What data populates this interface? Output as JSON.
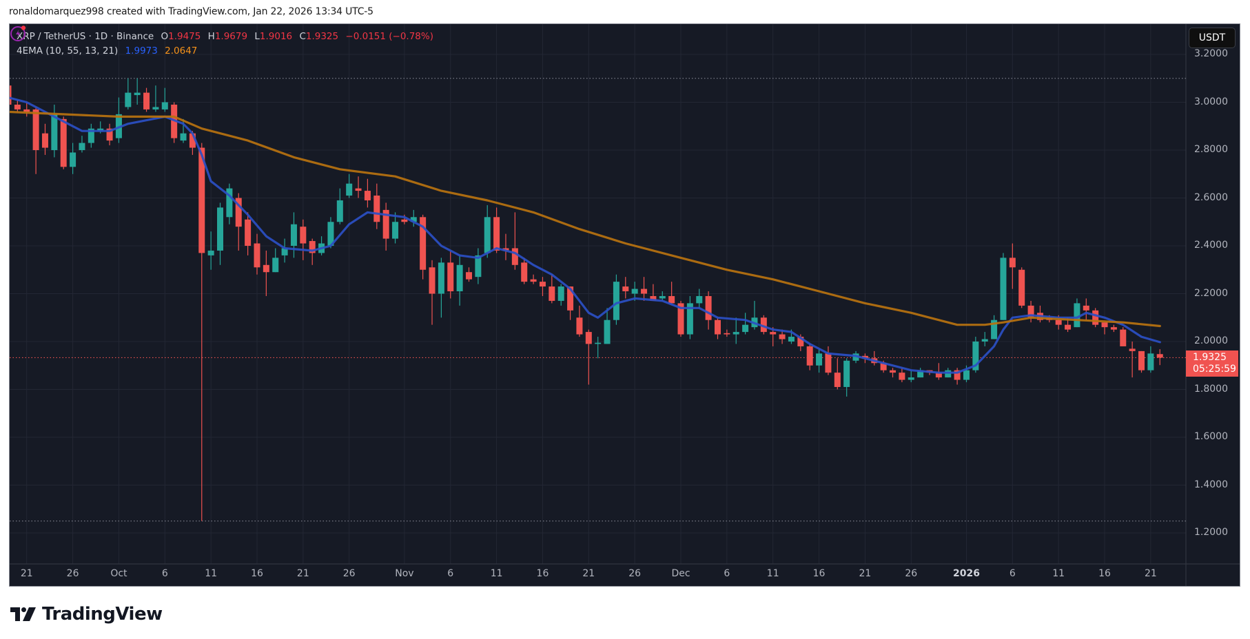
{
  "credit": "ronaldomarquez998 created with TradingView.com, Jan 22, 2026 13:34 UTC-5",
  "legend": {
    "symbol": "XRP / TetherUS · 1D · Binance",
    "o_label": "O",
    "o": "1.9475",
    "h_label": "H",
    "h": "1.9679",
    "l_label": "L",
    "l": "1.9016",
    "c_label": "C",
    "c": "1.9325",
    "change": "−0.0151 (−0.78%)",
    "indicator": "4EMA (10, 55, 13, 21)",
    "ema_fast": "1.9973",
    "ema_slow": "2.0647"
  },
  "currency_button": "USDT",
  "last_price": {
    "price": "1.9325",
    "countdown": "05:25:59"
  },
  "logo_text": "TradingView",
  "icons": {
    "alert": "lightning-alert-icon",
    "logo": "tradingview-logo-icon"
  },
  "colors": {
    "up": "#26a69a",
    "down": "#ef5350",
    "ema_fast": "#2b4fc4",
    "ema_slow": "#b8720f",
    "background": "#161a25",
    "grid": "#232734",
    "text": "#b2b5be"
  },
  "chart_data": {
    "type": "candlestick",
    "title": "XRP / TetherUS · 1D · Binance",
    "xlabel": "",
    "ylabel": "USDT",
    "ylim": [
      1.08,
      3.25
    ],
    "grid": true,
    "y_ticks": [
      "3.2000",
      "3.0000",
      "2.8000",
      "2.6000",
      "2.4000",
      "2.2000",
      "2.0000",
      "1.8000",
      "1.6000",
      "1.4000",
      "1.2000"
    ],
    "x_ticks": [
      {
        "label": "21",
        "day": 2
      },
      {
        "label": "26",
        "day": 7
      },
      {
        "label": "Oct",
        "day": 12
      },
      {
        "label": "6",
        "day": 17
      },
      {
        "label": "11",
        "day": 22
      },
      {
        "label": "16",
        "day": 27
      },
      {
        "label": "21",
        "day": 32
      },
      {
        "label": "26",
        "day": 37
      },
      {
        "label": "Nov",
        "day": 43
      },
      {
        "label": "6",
        "day": 48
      },
      {
        "label": "11",
        "day": 53
      },
      {
        "label": "16",
        "day": 58
      },
      {
        "label": "21",
        "day": 63
      },
      {
        "label": "26",
        "day": 68
      },
      {
        "label": "Dec",
        "day": 73
      },
      {
        "label": "6",
        "day": 78
      },
      {
        "label": "11",
        "day": 83
      },
      {
        "label": "16",
        "day": 88
      },
      {
        "label": "21",
        "day": 93
      },
      {
        "label": "26",
        "day": 98
      },
      {
        "label": "2026",
        "day": 104,
        "bold": true
      },
      {
        "label": "6",
        "day": 109
      },
      {
        "label": "11",
        "day": 114
      },
      {
        "label": "16",
        "day": 119
      },
      {
        "label": "21",
        "day": 124
      }
    ],
    "start_date": "Sep 19",
    "candles": [
      [
        3.07,
        3.08,
        2.95,
        2.99
      ],
      [
        2.99,
        3.01,
        2.96,
        2.97
      ],
      [
        2.97,
        3.0,
        2.94,
        2.96
      ],
      [
        2.97,
        2.98,
        2.7,
        2.8
      ],
      [
        2.87,
        2.91,
        2.78,
        2.81
      ],
      [
        2.8,
        2.99,
        2.77,
        2.95
      ],
      [
        2.93,
        2.94,
        2.72,
        2.73
      ],
      [
        2.73,
        2.83,
        2.7,
        2.79
      ],
      [
        2.8,
        2.86,
        2.79,
        2.83
      ],
      [
        2.83,
        2.91,
        2.81,
        2.89
      ],
      [
        2.88,
        2.92,
        2.87,
        2.89
      ],
      [
        2.89,
        2.91,
        2.82,
        2.84
      ],
      [
        2.85,
        3.02,
        2.83,
        2.95
      ],
      [
        2.98,
        3.1,
        2.97,
        3.04
      ],
      [
        3.03,
        3.1,
        2.99,
        3.04
      ],
      [
        3.04,
        3.06,
        2.96,
        2.97
      ],
      [
        2.97,
        3.07,
        2.96,
        2.98
      ],
      [
        2.97,
        3.06,
        2.96,
        3.0
      ],
      [
        2.99,
        3.0,
        2.83,
        2.85
      ],
      [
        2.84,
        2.93,
        2.83,
        2.87
      ],
      [
        2.87,
        2.88,
        2.78,
        2.81
      ],
      [
        2.81,
        2.83,
        1.25,
        2.37
      ],
      [
        2.36,
        2.46,
        2.3,
        2.38
      ],
      [
        2.38,
        2.58,
        2.32,
        2.56
      ],
      [
        2.52,
        2.66,
        2.49,
        2.64
      ],
      [
        2.6,
        2.62,
        2.38,
        2.48
      ],
      [
        2.51,
        2.54,
        2.36,
        2.4
      ],
      [
        2.41,
        2.45,
        2.28,
        2.31
      ],
      [
        2.32,
        2.38,
        2.19,
        2.29
      ],
      [
        2.29,
        2.39,
        2.29,
        2.35
      ],
      [
        2.36,
        2.43,
        2.33,
        2.39
      ],
      [
        2.4,
        2.54,
        2.35,
        2.49
      ],
      [
        2.48,
        2.51,
        2.34,
        2.41
      ],
      [
        2.42,
        2.43,
        2.32,
        2.37
      ],
      [
        2.37,
        2.44,
        2.36,
        2.41
      ],
      [
        2.4,
        2.52,
        2.39,
        2.5
      ],
      [
        2.5,
        2.64,
        2.49,
        2.59
      ],
      [
        2.61,
        2.7,
        2.6,
        2.66
      ],
      [
        2.64,
        2.69,
        2.6,
        2.63
      ],
      [
        2.63,
        2.68,
        2.56,
        2.59
      ],
      [
        2.61,
        2.66,
        2.47,
        2.5
      ],
      [
        2.55,
        2.58,
        2.38,
        2.43
      ],
      [
        2.43,
        2.54,
        2.41,
        2.5
      ],
      [
        2.51,
        2.53,
        2.49,
        2.5
      ],
      [
        2.5,
        2.55,
        2.48,
        2.52
      ],
      [
        2.52,
        2.53,
        2.26,
        2.3
      ],
      [
        2.31,
        2.34,
        2.07,
        2.2
      ],
      [
        2.2,
        2.35,
        2.1,
        2.33
      ],
      [
        2.33,
        2.38,
        2.18,
        2.21
      ],
      [
        2.21,
        2.36,
        2.15,
        2.32
      ],
      [
        2.29,
        2.31,
        2.25,
        2.26
      ],
      [
        2.27,
        2.39,
        2.24,
        2.36
      ],
      [
        2.37,
        2.57,
        2.35,
        2.52
      ],
      [
        2.52,
        2.56,
        2.37,
        2.38
      ],
      [
        2.39,
        2.45,
        2.34,
        2.38
      ],
      [
        2.39,
        2.54,
        2.3,
        2.32
      ],
      [
        2.33,
        2.35,
        2.24,
        2.25
      ],
      [
        2.26,
        2.28,
        2.24,
        2.25
      ],
      [
        2.25,
        2.27,
        2.19,
        2.23
      ],
      [
        2.23,
        2.28,
        2.16,
        2.17
      ],
      [
        2.17,
        2.24,
        2.15,
        2.23
      ],
      [
        2.23,
        2.23,
        2.09,
        2.13
      ],
      [
        2.1,
        2.15,
        2.02,
        2.03
      ],
      [
        2.04,
        2.05,
        1.82,
        1.99
      ],
      [
        1.99,
        2.02,
        1.93,
        1.995
      ],
      [
        1.99,
        2.14,
        1.99,
        2.09
      ],
      [
        2.09,
        2.28,
        2.07,
        2.25
      ],
      [
        2.23,
        2.27,
        2.18,
        2.21
      ],
      [
        2.2,
        2.25,
        2.17,
        2.22
      ],
      [
        2.22,
        2.27,
        2.17,
        2.2
      ],
      [
        2.19,
        2.24,
        2.17,
        2.17
      ],
      [
        2.18,
        2.21,
        2.17,
        2.19
      ],
      [
        2.19,
        2.25,
        2.16,
        2.16
      ],
      [
        2.16,
        2.17,
        2.02,
        2.03
      ],
      [
        2.03,
        2.19,
        2.01,
        2.16
      ],
      [
        2.16,
        2.22,
        2.14,
        2.19
      ],
      [
        2.19,
        2.21,
        2.05,
        2.09
      ],
      [
        2.09,
        2.1,
        2.01,
        2.03
      ],
      [
        2.035,
        2.05,
        2.02,
        2.03
      ],
      [
        2.03,
        2.1,
        1.99,
        2.04
      ],
      [
        2.04,
        2.12,
        2.03,
        2.07
      ],
      [
        2.06,
        2.17,
        2.05,
        2.1
      ],
      [
        2.1,
        2.11,
        2.03,
        2.04
      ],
      [
        2.04,
        2.06,
        1.98,
        2.03
      ],
      [
        2.03,
        2.05,
        1.99,
        2.01
      ],
      [
        2.0,
        2.05,
        1.99,
        2.02
      ],
      [
        2.02,
        2.03,
        1.96,
        1.98
      ],
      [
        1.98,
        1.99,
        1.88,
        1.9
      ],
      [
        1.9,
        1.97,
        1.87,
        1.95
      ],
      [
        1.95,
        1.98,
        1.86,
        1.87
      ],
      [
        1.87,
        1.93,
        1.8,
        1.81
      ],
      [
        1.81,
        1.93,
        1.77,
        1.92
      ],
      [
        1.92,
        1.96,
        1.91,
        1.95
      ],
      [
        1.94,
        1.95,
        1.91,
        1.93
      ],
      [
        1.93,
        1.96,
        1.9,
        1.91
      ],
      [
        1.91,
        1.92,
        1.87,
        1.88
      ],
      [
        1.88,
        1.89,
        1.85,
        1.87
      ],
      [
        1.87,
        1.89,
        1.83,
        1.84
      ],
      [
        1.84,
        1.88,
        1.83,
        1.85
      ],
      [
        1.85,
        1.89,
        1.85,
        1.88
      ],
      [
        1.88,
        1.88,
        1.86,
        1.87
      ],
      [
        1.87,
        1.91,
        1.84,
        1.85
      ],
      [
        1.85,
        1.89,
        1.85,
        1.88
      ],
      [
        1.88,
        1.89,
        1.82,
        1.84
      ],
      [
        1.84,
        1.9,
        1.83,
        1.88
      ],
      [
        1.88,
        2.02,
        1.87,
        2.0
      ],
      [
        2.0,
        2.04,
        1.98,
        2.01
      ],
      [
        2.01,
        2.11,
        2.01,
        2.09
      ],
      [
        2.09,
        2.37,
        2.09,
        2.35
      ],
      [
        2.35,
        2.41,
        2.22,
        2.31
      ],
      [
        2.3,
        2.31,
        2.14,
        2.15
      ],
      [
        2.15,
        2.17,
        2.08,
        2.1
      ],
      [
        2.12,
        2.15,
        2.08,
        2.09
      ],
      [
        2.1,
        2.11,
        2.08,
        2.09
      ],
      [
        2.09,
        2.11,
        2.05,
        2.07
      ],
      [
        2.07,
        2.1,
        2.04,
        2.05
      ],
      [
        2.06,
        2.18,
        2.06,
        2.16
      ],
      [
        2.15,
        2.18,
        2.09,
        2.13
      ],
      [
        2.13,
        2.14,
        2.06,
        2.07
      ],
      [
        2.08,
        2.08,
        2.03,
        2.06
      ],
      [
        2.06,
        2.07,
        2.04,
        2.05
      ],
      [
        2.05,
        2.06,
        1.98,
        1.98
      ],
      [
        1.97,
        2.0,
        1.85,
        1.96
      ],
      [
        1.96,
        1.96,
        1.87,
        1.88
      ],
      [
        1.88,
        1.98,
        1.87,
        1.95
      ],
      [
        1.9475,
        1.9679,
        1.9016,
        1.9325
      ]
    ],
    "series": [
      {
        "name": "EMA fast",
        "color": "#2b4fc4",
        "points": [
          [
            0,
            3.02
          ],
          [
            2,
            3.0
          ],
          [
            5,
            2.94
          ],
          [
            8,
            2.88
          ],
          [
            11,
            2.88
          ],
          [
            13,
            2.91
          ],
          [
            17,
            2.94
          ],
          [
            19,
            2.91
          ],
          [
            20,
            2.87
          ],
          [
            21,
            2.78
          ],
          [
            22,
            2.67
          ],
          [
            24,
            2.61
          ],
          [
            26,
            2.53
          ],
          [
            28,
            2.44
          ],
          [
            30,
            2.39
          ],
          [
            33,
            2.38
          ],
          [
            35,
            2.4
          ],
          [
            37,
            2.49
          ],
          [
            39,
            2.54
          ],
          [
            43,
            2.52
          ],
          [
            45,
            2.48
          ],
          [
            47,
            2.4
          ],
          [
            49,
            2.36
          ],
          [
            51,
            2.35
          ],
          [
            53,
            2.39
          ],
          [
            55,
            2.37
          ],
          [
            57,
            2.32
          ],
          [
            59,
            2.28
          ],
          [
            61,
            2.22
          ],
          [
            63,
            2.12
          ],
          [
            64,
            2.1
          ],
          [
            66,
            2.16
          ],
          [
            68,
            2.18
          ],
          [
            71,
            2.17
          ],
          [
            73,
            2.14
          ],
          [
            75,
            2.14
          ],
          [
            77,
            2.1
          ],
          [
            80,
            2.09
          ],
          [
            83,
            2.05
          ],
          [
            85,
            2.04
          ],
          [
            87,
            1.99
          ],
          [
            89,
            1.95
          ],
          [
            92,
            1.94
          ],
          [
            95,
            1.91
          ],
          [
            98,
            1.88
          ],
          [
            101,
            1.87
          ],
          [
            103,
            1.87
          ],
          [
            105,
            1.9
          ],
          [
            106,
            1.94
          ],
          [
            107,
            1.98
          ],
          [
            108,
            2.05
          ],
          [
            109,
            2.1
          ],
          [
            111,
            2.11
          ],
          [
            114,
            2.1
          ],
          [
            116,
            2.1
          ],
          [
            117,
            2.12
          ],
          [
            119,
            2.1
          ],
          [
            121,
            2.07
          ],
          [
            123,
            2.02
          ],
          [
            125,
            1.9973
          ]
        ]
      },
      {
        "name": "EMA slow",
        "color": "#b8720f",
        "points": [
          [
            0,
            2.96
          ],
          [
            12,
            2.94
          ],
          [
            18,
            2.94
          ],
          [
            21,
            2.89
          ],
          [
            26,
            2.84
          ],
          [
            31,
            2.77
          ],
          [
            36,
            2.72
          ],
          [
            42,
            2.69
          ],
          [
            47,
            2.63
          ],
          [
            52,
            2.59
          ],
          [
            57,
            2.54
          ],
          [
            62,
            2.47
          ],
          [
            67,
            2.41
          ],
          [
            73,
            2.35
          ],
          [
            78,
            2.3
          ],
          [
            83,
            2.26
          ],
          [
            88,
            2.21
          ],
          [
            93,
            2.16
          ],
          [
            98,
            2.12
          ],
          [
            103,
            2.07
          ],
          [
            106,
            2.07
          ],
          [
            108,
            2.08
          ],
          [
            111,
            2.1
          ],
          [
            116,
            2.09
          ],
          [
            121,
            2.08
          ],
          [
            125,
            2.0647
          ]
        ]
      }
    ],
    "hlines": [
      {
        "price": 3.1,
        "color": "#787b86",
        "style": "dotted"
      },
      {
        "price": 1.25,
        "color": "#787b86",
        "style": "dotted"
      },
      {
        "price": 1.9325,
        "color": "#f05350",
        "style": "dotted"
      }
    ]
  }
}
